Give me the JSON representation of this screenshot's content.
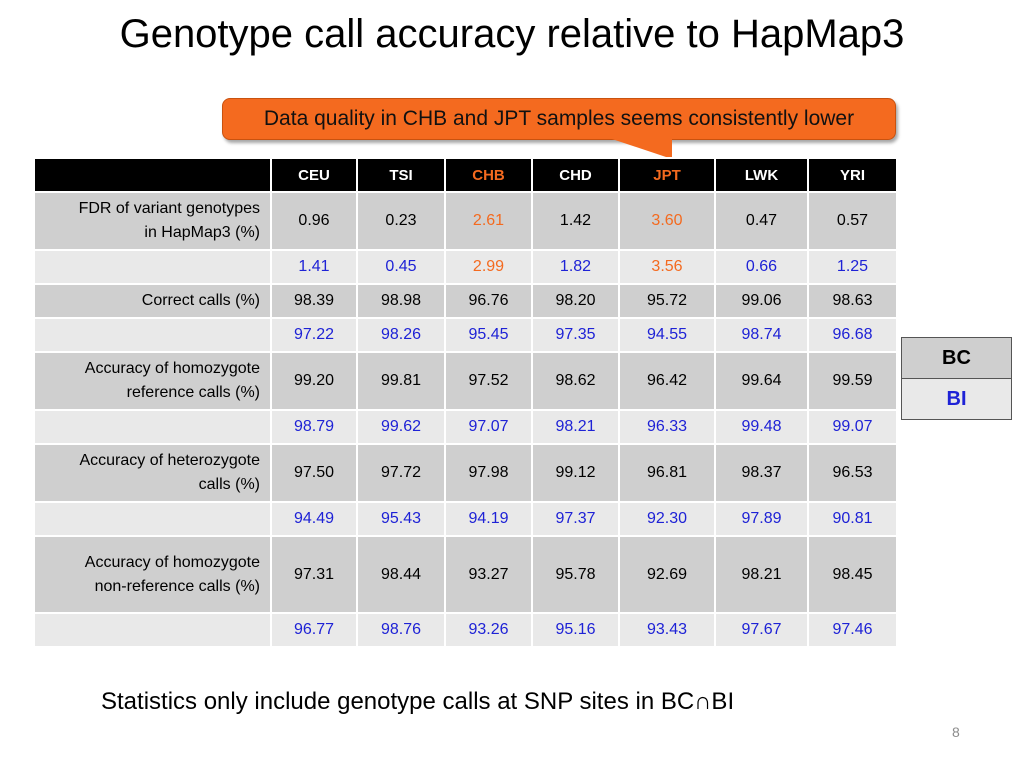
{
  "title": "Genotype call accuracy relative to HapMap3",
  "callout": "Data quality in CHB and JPT samples seems consistently lower",
  "table": {
    "headers": [
      "",
      "CEU",
      "TSI",
      "CHB",
      "CHD",
      "JPT",
      "LWK",
      "YRI"
    ],
    "rows": [
      {
        "label_line1": "FDR of variant genotypes",
        "label_line2": "in HapMap3 (%)",
        "bc": [
          "0.96",
          "0.23",
          "2.61",
          "1.42",
          "3.60",
          "0.47",
          "0.57"
        ],
        "bi": [
          "1.41",
          "0.45",
          "2.99",
          "1.82",
          "3.56",
          "0.66",
          "1.25"
        ]
      },
      {
        "label_line1": "Correct calls (%)",
        "label_line2": "",
        "bc": [
          "98.39",
          "98.98",
          "96.76",
          "98.20",
          "95.72",
          "99.06",
          "98.63"
        ],
        "bi": [
          "97.22",
          "98.26",
          "95.45",
          "97.35",
          "94.55",
          "98.74",
          "96.68"
        ]
      },
      {
        "label_line1": "Accuracy of homozygote",
        "label_line2": "reference calls (%)",
        "bc": [
          "99.20",
          "99.81",
          "97.52",
          "98.62",
          "96.42",
          "99.64",
          "99.59"
        ],
        "bi": [
          "98.79",
          "99.62",
          "97.07",
          "98.21",
          "96.33",
          "99.48",
          "99.07"
        ]
      },
      {
        "label_line1": "Accuracy of heterozygote",
        "label_line2": "calls (%)",
        "bc": [
          "97.50",
          "97.72",
          "97.98",
          "99.12",
          "96.81",
          "98.37",
          "96.53"
        ],
        "bi": [
          "94.49",
          "95.43",
          "94.19",
          "97.37",
          "92.30",
          "97.89",
          "90.81"
        ]
      },
      {
        "label_line1": "Accuracy of homozygote",
        "label_line2": "non-reference calls (%)",
        "bc": [
          "97.31",
          "98.44",
          "93.27",
          "95.78",
          "92.69",
          "98.21",
          "98.45"
        ],
        "bi": [
          "96.77",
          "98.76",
          "93.26",
          "95.16",
          "93.43",
          "97.67",
          "97.46"
        ]
      }
    ]
  },
  "legend": {
    "bc": "BC",
    "bi": "BI"
  },
  "footnote": "Statistics only include genotype calls at SNP sites in BC∩BI",
  "page_number": "8",
  "colors": {
    "highlight": "#f46a1f",
    "bi_text": "#1e22d6",
    "header_bg": "#000000"
  }
}
